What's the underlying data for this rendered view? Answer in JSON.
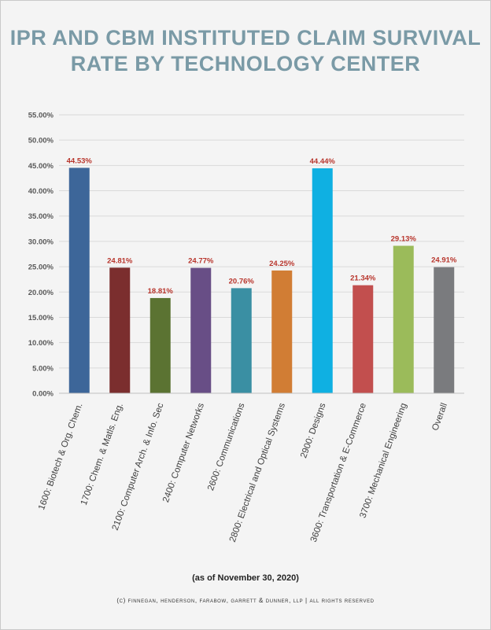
{
  "title_line1": "IPR AND CBM INSTITUTED CLAIM SURVIVAL",
  "title_line2": "RATE BY TECHNOLOGY CENTER",
  "note": "(as of November 30, 2020)",
  "copyright": "(c) finnegan, henderson, farabow, garrett & dunner, llp | all rights reserved",
  "chart_data": {
    "type": "bar",
    "title": "IPR AND CBM INSTITUTED CLAIM SURVIVAL RATE BY TECHNOLOGY CENTER",
    "xlabel": "",
    "ylabel": "",
    "ylim": [
      0,
      55
    ],
    "yticks": [
      "0.00%",
      "5.00%",
      "10.00%",
      "15.00%",
      "20.00%",
      "25.00%",
      "30.00%",
      "35.00%",
      "40.00%",
      "45.00%",
      "50.00%",
      "55.00%"
    ],
    "grid": true,
    "legend": "none",
    "categories": [
      "1600: Biotech & Org. Chem.",
      "1700: Chem. & Matls. Eng.",
      "2100: Computer Arch. & Info. Sec",
      "2400: Computer Networks",
      "2600: Communications",
      "2800: Electrical and Optical Systems",
      "2900: Designs",
      "3600: Transportation & E-Commerce",
      "3700: Mechanical Engineering",
      "Overall"
    ],
    "values": [
      44.53,
      24.81,
      18.81,
      24.77,
      20.76,
      24.25,
      44.44,
      21.34,
      29.13,
      24.91
    ],
    "labels": [
      "44.53%",
      "24.81%",
      "18.81%",
      "24.77%",
      "20.76%",
      "24.25%",
      "44.44%",
      "21.34%",
      "29.13%",
      "24.91%"
    ],
    "colors": [
      "#3d6699",
      "#7b2e2e",
      "#5b7332",
      "#684e86",
      "#3a8fa3",
      "#d17d34",
      "#0fb0e2",
      "#c24f4e",
      "#9bbb5a",
      "#7a7b7e"
    ],
    "label_color": "#b8352c"
  }
}
